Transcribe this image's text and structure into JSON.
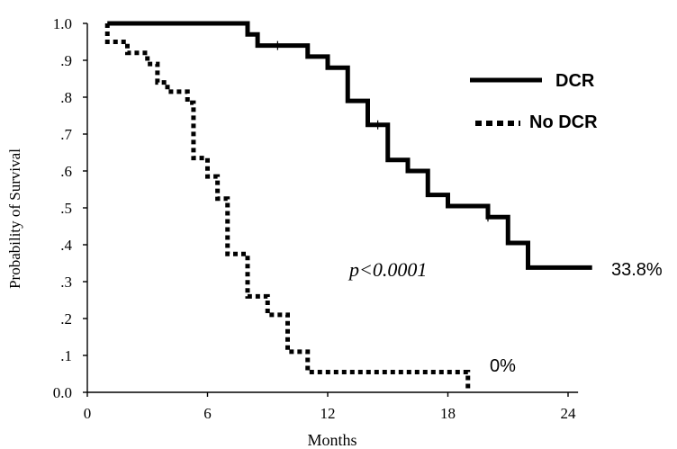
{
  "chart_data": {
    "type": "line",
    "xlabel": "Months",
    "ylabel": "Probability of Survival",
    "xlim": [
      0,
      25
    ],
    "ylim": [
      0,
      1.0
    ],
    "xticks": [
      0,
      6,
      12,
      18,
      24
    ],
    "xtick_labels": [
      "0",
      "6",
      "12",
      "18",
      "24"
    ],
    "yticks": [
      0,
      0.1,
      0.2,
      0.3,
      0.4,
      0.5,
      0.6,
      0.7,
      0.8,
      0.9,
      1.0
    ],
    "ytick_labels": [
      "0.0",
      ".1",
      ".2",
      ".3",
      ".4",
      ".5",
      ".6",
      ".7",
      ".8",
      ".9",
      "1.0"
    ],
    "grid": false,
    "legend_position": "top-right",
    "series": [
      {
        "name": "DCR",
        "style": "solid",
        "steps": [
          [
            1,
            1.0
          ],
          [
            8,
            0.97
          ],
          [
            8.5,
            0.94
          ],
          [
            11,
            0.91
          ],
          [
            12,
            0.88
          ],
          [
            13,
            0.79
          ],
          [
            14,
            0.725
          ],
          [
            15,
            0.63
          ],
          [
            16,
            0.6
          ],
          [
            17,
            0.535
          ],
          [
            18,
            0.505
          ],
          [
            20,
            0.475
          ],
          [
            21,
            0.405
          ],
          [
            22,
            0.338
          ],
          [
            25.2,
            0.338
          ]
        ],
        "censored": [
          [
            9.5,
            0.94
          ],
          [
            14.5,
            0.725
          ],
          [
            20,
            0.475
          ]
        ],
        "end_label": "33.8%"
      },
      {
        "name": "No DCR",
        "style": "dashed",
        "steps": [
          [
            1,
            0.95
          ],
          [
            2,
            0.92
          ],
          [
            3,
            0.89
          ],
          [
            3.5,
            0.84
          ],
          [
            4,
            0.815
          ],
          [
            5,
            0.785
          ],
          [
            5.3,
            0.635
          ],
          [
            6,
            0.585
          ],
          [
            6.5,
            0.525
          ],
          [
            7,
            0.375
          ],
          [
            8,
            0.26
          ],
          [
            9,
            0.21
          ],
          [
            10,
            0.11
          ],
          [
            11,
            0.055
          ],
          [
            19,
            0.0
          ]
        ],
        "end_label": "0%"
      }
    ],
    "annotations": [
      {
        "text": "p<0.0001",
        "x": 8.9,
        "y": 0.315
      }
    ]
  }
}
